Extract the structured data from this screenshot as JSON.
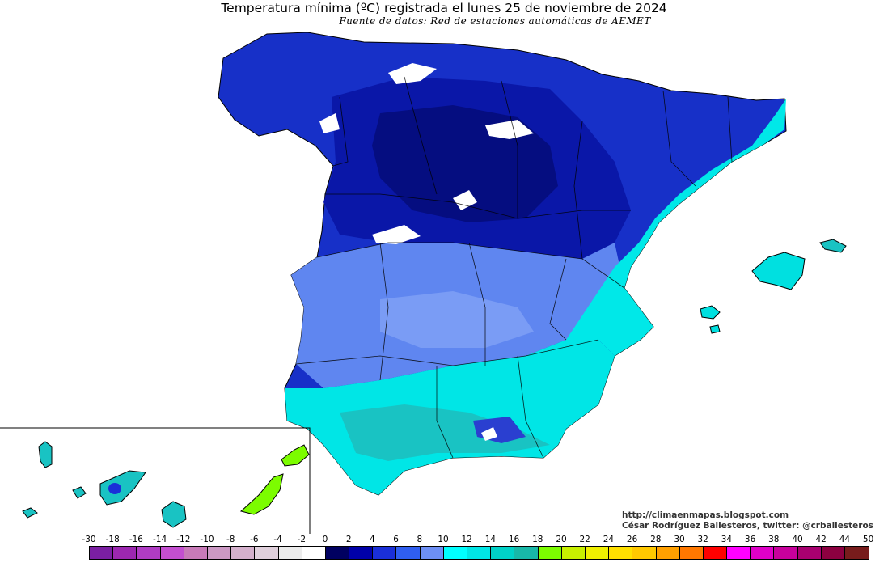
{
  "title": "Temperatura mínima (ºC) registrada el lunes 25 de noviembre de 2024",
  "subtitle": "Fuente de datos: Red de estaciones automáticas de AEMET",
  "credits": {
    "blog": "http://climaenmapas.blogspot.com",
    "author": "César Rodríguez Ballesteros, twitter: @crballesteros"
  },
  "legend": {
    "labels": [
      "-30",
      "-18",
      "-16",
      "-14",
      "-12",
      "-10",
      "-8",
      "-6",
      "-4",
      "-2",
      "0",
      "2",
      "4",
      "6",
      "8",
      "10",
      "12",
      "14",
      "16",
      "18",
      "20",
      "22",
      "24",
      "26",
      "28",
      "30",
      "32",
      "34",
      "36",
      "38",
      "40",
      "42",
      "44",
      "50"
    ],
    "colors": [
      "#7b1fa2",
      "#9c27b0",
      "#b03cc4",
      "#c44fd0",
      "#c87ab8",
      "#cc99c4",
      "#d4b0cc",
      "#e0d0dc",
      "#ececec",
      "#ffffff",
      "#000060",
      "#0000a8",
      "#1a2fd8",
      "#2f5ef0",
      "#6d8ff5",
      "#00ffff",
      "#00e6e6",
      "#00d2c8",
      "#18b8a8",
      "#7cfc00",
      "#c8f000",
      "#f0f000",
      "#ffe000",
      "#ffc800",
      "#ffa000",
      "#ff7800",
      "#ff0000",
      "#ff00ff",
      "#e000c8",
      "#c8009c",
      "#a80070",
      "#8c0040",
      "#781c1c"
    ]
  }
}
